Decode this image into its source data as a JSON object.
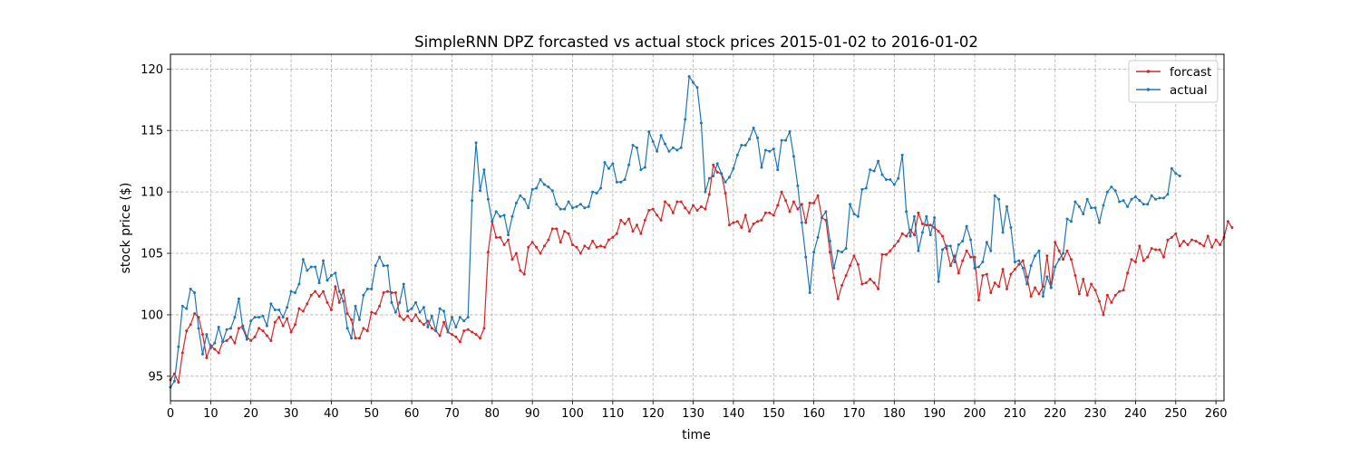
{
  "chart_data": {
    "type": "line",
    "title": "SimpleRNN DPZ forcasted vs actual stock prices 2015-01-02 to 2016-01-02",
    "xlabel": "time",
    "ylabel": "stock price ($)",
    "xlim": [
      0,
      262
    ],
    "ylim": [
      93.0,
      121.2
    ],
    "xticks": [
      0,
      10,
      20,
      30,
      40,
      50,
      60,
      70,
      80,
      90,
      100,
      110,
      120,
      130,
      140,
      150,
      160,
      170,
      180,
      190,
      200,
      210,
      220,
      230,
      240,
      250,
      260
    ],
    "yticks": [
      95,
      100,
      105,
      110,
      115,
      120
    ],
    "grid": true,
    "grid_style": "dashed",
    "legend_position": "top-right",
    "series": [
      {
        "name": "forcast",
        "color": "#d62728",
        "values": [
          94.7,
          95.2,
          94.5,
          96.9,
          98.7,
          99.2,
          100.1,
          99.8,
          98.4,
          96.5,
          97.5,
          97.2,
          96.9,
          97.8,
          97.9,
          98.2,
          97.7,
          98.9,
          99.1,
          98.2,
          97.9,
          98.2,
          98.9,
          98.7,
          98.3,
          97.9,
          99.4,
          99.8,
          99.1,
          99.7,
          98.6,
          99.2,
          100.5,
          100.3,
          100.9,
          101.6,
          101.9,
          101.5,
          101.9,
          101.0,
          100.4,
          102.3,
          101.0,
          102.0,
          100.1,
          99.6,
          98.1,
          98.1,
          98.9,
          98.7,
          100.2,
          100.1,
          100.7,
          101.8,
          101.9,
          101.8,
          101.8,
          99.9,
          99.6,
          99.9,
          99.5,
          100.0,
          99.5,
          99.2,
          99.5,
          98.9,
          98.7,
          98.3,
          99.4,
          98.6,
          98.4,
          98.2,
          97.8,
          98.7,
          98.8,
          98.6,
          98.4,
          98.1,
          98.9,
          105.1,
          107.6,
          106.3,
          106.3,
          105.7,
          106.1,
          104.5,
          105.0,
          103.6,
          103.3,
          105.5,
          105.9,
          105.5,
          105.0,
          105.6,
          106.1,
          107.0,
          107.0,
          105.9,
          106.8,
          106.6,
          105.7,
          105.5,
          105.0,
          105.6,
          105.4,
          106.0,
          105.5,
          105.6,
          105.5,
          106.1,
          106.3,
          106.6,
          107.7,
          107.4,
          107.8,
          106.8,
          107.3,
          106.6,
          107.7,
          108.5,
          108.6,
          108.1,
          107.7,
          109.2,
          108.9,
          108.3,
          109.2,
          109.2,
          108.7,
          108.3,
          108.9,
          108.5,
          108.8,
          108.6,
          109.8,
          112.2,
          111.6,
          111.5,
          109.9,
          107.3,
          107.5,
          107.6,
          107.1,
          108.1,
          106.8,
          107.4,
          107.6,
          107.7,
          108.3,
          108.3,
          108.1,
          108.9,
          110.0,
          109.3,
          108.4,
          109.2,
          108.6,
          109.0,
          107.5,
          109.1,
          109.1,
          109.7,
          107.9,
          107.7,
          105.1,
          103.0,
          101.3,
          102.4,
          103.2,
          104.0,
          104.8,
          104.1,
          102.5,
          102.6,
          102.9,
          102.6,
          102.1,
          104.9,
          104.9,
          105.2,
          105.6,
          106.0,
          106.6,
          106.4,
          106.9,
          106.5,
          108.3,
          107.4,
          107.3,
          107.3,
          107.1,
          106.8,
          106.4,
          105.4,
          104.0,
          104.8,
          103.4,
          104.4,
          105.2,
          104.7,
          104.7,
          101.2,
          103.2,
          103.3,
          101.8,
          102.6,
          102.3,
          103.7,
          102.1,
          103.3,
          103.7,
          104.1,
          104.4,
          103.1,
          101.5,
          102.2,
          101.7,
          102.3,
          104.8,
          102.2,
          105.9,
          105.2,
          104.5,
          105.2,
          104.5,
          103.2,
          101.7,
          102.9,
          101.6,
          102.5,
          102.0,
          101.1,
          100.0,
          101.6,
          101.0,
          101.6,
          101.9,
          102.0,
          103.4,
          104.5,
          104.3,
          105.6,
          104.4,
          104.7,
          105.4,
          105.3,
          105.3,
          104.7,
          106.1,
          106.3,
          106.6,
          105.6,
          106.0,
          105.7,
          106.1,
          106.0,
          105.8,
          105.6,
          106.4,
          105.5,
          106.1,
          105.7,
          106.3,
          107.6,
          107.1
        ]
      },
      {
        "name": "actual",
        "color": "#1f77b4",
        "values": [
          94.1,
          94.6,
          97.4,
          100.7,
          100.5,
          102.1,
          101.8,
          98.9,
          96.8,
          98.4,
          97.3,
          97.7,
          99.0,
          97.8,
          98.8,
          98.9,
          99.8,
          101.3,
          98.9,
          98.0,
          99.5,
          99.8,
          99.8,
          99.9,
          99.1,
          100.9,
          100.4,
          100.4,
          99.8,
          100.6,
          101.9,
          101.8,
          102.5,
          104.5,
          103.6,
          103.9,
          103.9,
          102.6,
          104.4,
          102.8,
          103.2,
          103.4,
          101.9,
          101.1,
          98.9,
          98.1,
          100.7,
          99.6,
          101.6,
          102.1,
          102.1,
          104.0,
          104.7,
          104.0,
          104.0,
          101.0,
          100.2,
          101.0,
          102.5,
          100.3,
          100.5,
          101.0,
          100.2,
          100.6,
          99.0,
          99.9,
          98.7,
          100.5,
          100.3,
          98.6,
          99.8,
          99.0,
          99.8,
          99.5,
          99.8,
          109.3,
          114.0,
          110.1,
          111.8,
          109.4,
          107.6,
          108.4,
          108.0,
          108.1,
          106.5,
          108.0,
          109.1,
          109.7,
          109.4,
          108.7,
          110.2,
          110.3,
          111.0,
          110.6,
          110.4,
          110.1,
          109.0,
          108.6,
          108.6,
          109.2,
          108.7,
          108.8,
          109.0,
          108.7,
          108.8,
          110.0,
          109.9,
          110.3,
          112.4,
          111.9,
          112.3,
          110.8,
          110.8,
          111.0,
          112.2,
          113.8,
          113.6,
          111.8,
          112.0,
          114.9,
          114.1,
          113.3,
          114.6,
          113.9,
          113.3,
          113.6,
          113.4,
          113.6,
          115.9,
          119.4,
          118.9,
          118.5,
          115.6,
          110.0,
          111.1,
          111.3,
          112.3,
          111.5,
          110.8,
          111.2,
          111.9,
          113.0,
          113.8,
          113.8,
          114.3,
          115.2,
          114.4,
          112.0,
          113.4,
          113.3,
          113.5,
          111.8,
          114.2,
          114.2,
          114.9,
          112.9,
          110.5,
          107.5,
          104.7,
          101.8,
          105.1,
          106.3,
          107.9,
          108.4,
          106.0,
          103.8,
          105.2,
          105.1,
          105.4,
          109.0,
          108.2,
          108.0,
          110.2,
          110.3,
          111.8,
          111.7,
          112.5,
          111.4,
          111.0,
          111.0,
          110.6,
          111.1,
          113.0,
          108.4,
          106.4,
          108.0,
          105.2,
          106.7,
          108.0,
          106.5,
          107.9,
          102.7,
          105.3,
          105.6,
          105.6,
          104.3,
          105.7,
          106.0,
          107.2,
          106.1,
          103.8,
          103.9,
          104.3,
          105.9,
          105.2,
          109.7,
          109.4,
          106.7,
          108.8,
          107.1,
          104.3,
          104.4,
          103.8,
          102.5,
          104.0,
          104.8,
          105.2,
          101.5,
          103.1,
          102.2,
          103.9,
          104.5,
          105.0,
          107.8,
          107.6,
          109.2,
          108.8,
          108.2,
          109.4,
          108.7,
          108.7,
          107.5,
          108.9,
          110.0,
          110.4,
          110.1,
          109.2,
          109.3,
          108.8,
          109.4,
          109.6,
          109.3,
          109.0,
          109.0,
          109.7,
          109.4,
          109.5,
          109.5,
          109.8,
          111.9,
          111.5,
          111.3
        ]
      }
    ]
  }
}
